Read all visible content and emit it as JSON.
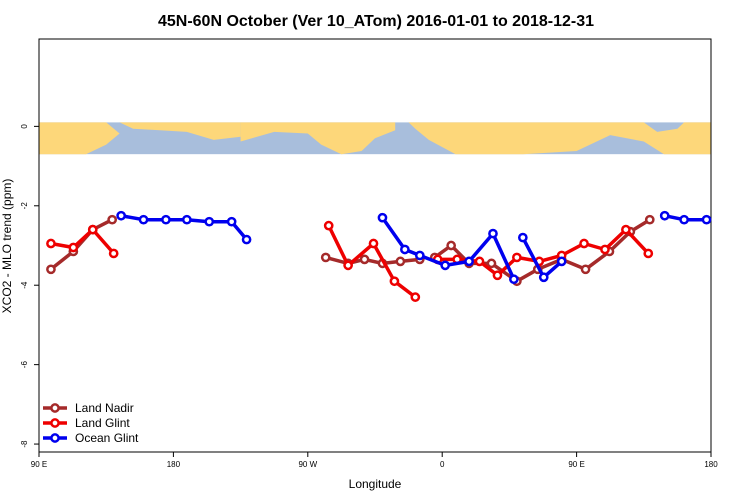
{
  "chart_data": {
    "type": "line",
    "title": "45N-60N October (Ver 10_ATom)   2016-01-01 to 2018-12-31",
    "xlabel": "Longitude",
    "ylabel": "XCO2 - MLO trend (ppm)",
    "xlim": [
      90,
      540
    ],
    "ylim": [
      -8.2,
      2.2
    ],
    "x_ticks": [
      {
        "value": 90,
        "label": "90 E"
      },
      {
        "value": 180,
        "label": "180"
      },
      {
        "value": 270,
        "label": "90 W"
      },
      {
        "value": 360,
        "label": "0"
      },
      {
        "value": 450,
        "label": "90 E"
      },
      {
        "value": 540,
        "label": "180"
      }
    ],
    "y_ticks": [
      {
        "value": 0,
        "label": "0"
      },
      {
        "value": -2,
        "label": "-2"
      },
      {
        "value": -4,
        "label": "-4"
      },
      {
        "value": -6,
        "label": "-6"
      },
      {
        "value": -8,
        "label": "-8"
      }
    ],
    "map_band": {
      "y_top": 0.1,
      "y_bottom": -0.7,
      "land_color": "#fdd77a",
      "ocean_color": "#a8bedc"
    },
    "legend_position": "bottom-left",
    "grid": false,
    "series": [
      {
        "name": "Land Nadir",
        "color": "#a52a2a",
        "segments": [
          [
            [
              98,
              -3.6
            ],
            [
              113,
              -3.15
            ],
            [
              126,
              -2.6
            ],
            [
              139,
              -2.35
            ]
          ],
          [
            [
              282,
              -3.3
            ],
            [
              297,
              -3.45
            ],
            [
              308,
              -3.35
            ],
            [
              320,
              -3.45
            ],
            [
              332,
              -3.4
            ],
            [
              345,
              -3.35
            ]
          ],
          [
            [
              355,
              -3.3
            ],
            [
              366,
              -3.0
            ],
            [
              378,
              -3.45
            ],
            [
              393,
              -3.45
            ],
            [
              410,
              -3.9
            ],
            [
              424,
              -3.6
            ],
            [
              440,
              -3.35
            ],
            [
              456,
              -3.6
            ],
            [
              472,
              -3.15
            ],
            [
              486,
              -2.65
            ],
            [
              499,
              -2.35
            ]
          ]
        ]
      },
      {
        "name": "Land Glint",
        "color": "#ee0000",
        "segments": [
          [
            [
              98,
              -2.95
            ],
            [
              113,
              -3.05
            ],
            [
              126,
              -2.6
            ],
            [
              140,
              -3.2
            ]
          ],
          [
            [
              284,
              -2.5
            ],
            [
              297,
              -3.5
            ],
            [
              314,
              -2.95
            ],
            [
              328,
              -3.9
            ],
            [
              342,
              -4.3
            ]
          ],
          [
            [
              357,
              -3.35
            ],
            [
              370,
              -3.35
            ],
            [
              385,
              -3.4
            ],
            [
              397,
              -3.75
            ],
            [
              410,
              -3.3
            ],
            [
              425,
              -3.4
            ],
            [
              440,
              -3.25
            ],
            [
              455,
              -2.95
            ],
            [
              469,
              -3.1
            ],
            [
              483,
              -2.6
            ],
            [
              498,
              -3.2
            ]
          ]
        ]
      },
      {
        "name": "Ocean Glint",
        "color": "#0000ee",
        "segments": [
          [
            [
              145,
              -2.25
            ],
            [
              160,
              -2.35
            ],
            [
              175,
              -2.35
            ],
            [
              189,
              -2.35
            ],
            [
              204,
              -2.4
            ],
            [
              219,
              -2.4
            ],
            [
              229,
              -2.85
            ]
          ],
          [
            [
              320,
              -2.3
            ],
            [
              335,
              -3.1
            ],
            [
              345,
              -3.25
            ],
            [
              362,
              -3.5
            ],
            [
              378,
              -3.4
            ],
            [
              394,
              -2.7
            ],
            [
              408,
              -3.85
            ]
          ],
          [
            [
              414,
              -2.8
            ],
            [
              428,
              -3.8
            ],
            [
              440,
              -3.4
            ]
          ],
          [
            [
              509,
              -2.25
            ],
            [
              522,
              -2.35
            ],
            [
              537,
              -2.35
            ]
          ]
        ]
      }
    ]
  }
}
